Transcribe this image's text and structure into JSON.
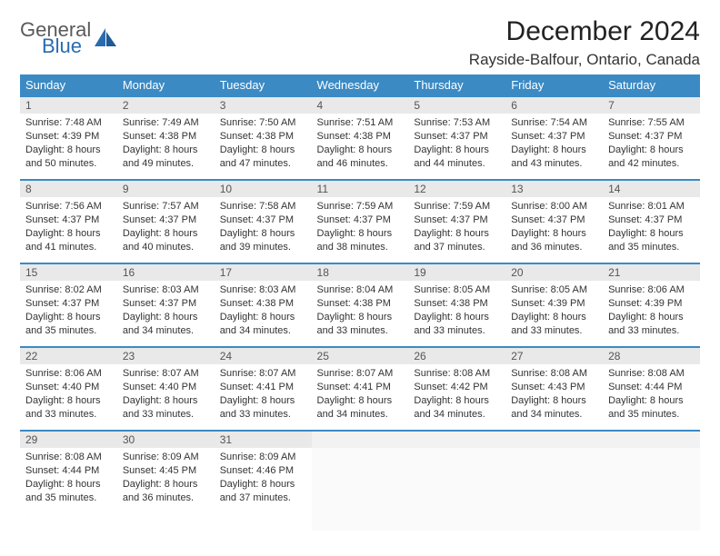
{
  "logo": {
    "word1": "General",
    "word2": "Blue",
    "color_gray": "#5a5a5a",
    "color_blue": "#2a6bb0"
  },
  "header": {
    "title": "December 2024",
    "location": "Rayside-Balfour, Ontario, Canada"
  },
  "colors": {
    "header_bg": "#3b8ac4",
    "header_fg": "#ffffff",
    "daynum_bg": "#e9e9e9",
    "daynum_fg": "#555555",
    "rule": "#3b8ac4",
    "body_text": "#333333"
  },
  "weekdays": [
    "Sunday",
    "Monday",
    "Tuesday",
    "Wednesday",
    "Thursday",
    "Friday",
    "Saturday"
  ],
  "days": [
    {
      "n": 1,
      "sunrise": "7:48 AM",
      "sunset": "4:39 PM",
      "day_h": 8,
      "day_m": 50
    },
    {
      "n": 2,
      "sunrise": "7:49 AM",
      "sunset": "4:38 PM",
      "day_h": 8,
      "day_m": 49
    },
    {
      "n": 3,
      "sunrise": "7:50 AM",
      "sunset": "4:38 PM",
      "day_h": 8,
      "day_m": 47
    },
    {
      "n": 4,
      "sunrise": "7:51 AM",
      "sunset": "4:38 PM",
      "day_h": 8,
      "day_m": 46
    },
    {
      "n": 5,
      "sunrise": "7:53 AM",
      "sunset": "4:37 PM",
      "day_h": 8,
      "day_m": 44
    },
    {
      "n": 6,
      "sunrise": "7:54 AM",
      "sunset": "4:37 PM",
      "day_h": 8,
      "day_m": 43
    },
    {
      "n": 7,
      "sunrise": "7:55 AM",
      "sunset": "4:37 PM",
      "day_h": 8,
      "day_m": 42
    },
    {
      "n": 8,
      "sunrise": "7:56 AM",
      "sunset": "4:37 PM",
      "day_h": 8,
      "day_m": 41
    },
    {
      "n": 9,
      "sunrise": "7:57 AM",
      "sunset": "4:37 PM",
      "day_h": 8,
      "day_m": 40
    },
    {
      "n": 10,
      "sunrise": "7:58 AM",
      "sunset": "4:37 PM",
      "day_h": 8,
      "day_m": 39
    },
    {
      "n": 11,
      "sunrise": "7:59 AM",
      "sunset": "4:37 PM",
      "day_h": 8,
      "day_m": 38
    },
    {
      "n": 12,
      "sunrise": "7:59 AM",
      "sunset": "4:37 PM",
      "day_h": 8,
      "day_m": 37
    },
    {
      "n": 13,
      "sunrise": "8:00 AM",
      "sunset": "4:37 PM",
      "day_h": 8,
      "day_m": 36
    },
    {
      "n": 14,
      "sunrise": "8:01 AM",
      "sunset": "4:37 PM",
      "day_h": 8,
      "day_m": 35
    },
    {
      "n": 15,
      "sunrise": "8:02 AM",
      "sunset": "4:37 PM",
      "day_h": 8,
      "day_m": 35
    },
    {
      "n": 16,
      "sunrise": "8:03 AM",
      "sunset": "4:37 PM",
      "day_h": 8,
      "day_m": 34
    },
    {
      "n": 17,
      "sunrise": "8:03 AM",
      "sunset": "4:38 PM",
      "day_h": 8,
      "day_m": 34
    },
    {
      "n": 18,
      "sunrise": "8:04 AM",
      "sunset": "4:38 PM",
      "day_h": 8,
      "day_m": 33
    },
    {
      "n": 19,
      "sunrise": "8:05 AM",
      "sunset": "4:38 PM",
      "day_h": 8,
      "day_m": 33
    },
    {
      "n": 20,
      "sunrise": "8:05 AM",
      "sunset": "4:39 PM",
      "day_h": 8,
      "day_m": 33
    },
    {
      "n": 21,
      "sunrise": "8:06 AM",
      "sunset": "4:39 PM",
      "day_h": 8,
      "day_m": 33
    },
    {
      "n": 22,
      "sunrise": "8:06 AM",
      "sunset": "4:40 PM",
      "day_h": 8,
      "day_m": 33
    },
    {
      "n": 23,
      "sunrise": "8:07 AM",
      "sunset": "4:40 PM",
      "day_h": 8,
      "day_m": 33
    },
    {
      "n": 24,
      "sunrise": "8:07 AM",
      "sunset": "4:41 PM",
      "day_h": 8,
      "day_m": 33
    },
    {
      "n": 25,
      "sunrise": "8:07 AM",
      "sunset": "4:41 PM",
      "day_h": 8,
      "day_m": 34
    },
    {
      "n": 26,
      "sunrise": "8:08 AM",
      "sunset": "4:42 PM",
      "day_h": 8,
      "day_m": 34
    },
    {
      "n": 27,
      "sunrise": "8:08 AM",
      "sunset": "4:43 PM",
      "day_h": 8,
      "day_m": 34
    },
    {
      "n": 28,
      "sunrise": "8:08 AM",
      "sunset": "4:44 PM",
      "day_h": 8,
      "day_m": 35
    },
    {
      "n": 29,
      "sunrise": "8:08 AM",
      "sunset": "4:44 PM",
      "day_h": 8,
      "day_m": 35
    },
    {
      "n": 30,
      "sunrise": "8:09 AM",
      "sunset": "4:45 PM",
      "day_h": 8,
      "day_m": 36
    },
    {
      "n": 31,
      "sunrise": "8:09 AM",
      "sunset": "4:46 PM",
      "day_h": 8,
      "day_m": 37
    }
  ],
  "labels": {
    "sunrise": "Sunrise:",
    "sunset": "Sunset:",
    "daylight": "Daylight:",
    "hours": "hours",
    "and": "and",
    "minutes": "minutes."
  },
  "layout": {
    "first_weekday_index": 0,
    "weeks": 5,
    "cols": 7
  }
}
